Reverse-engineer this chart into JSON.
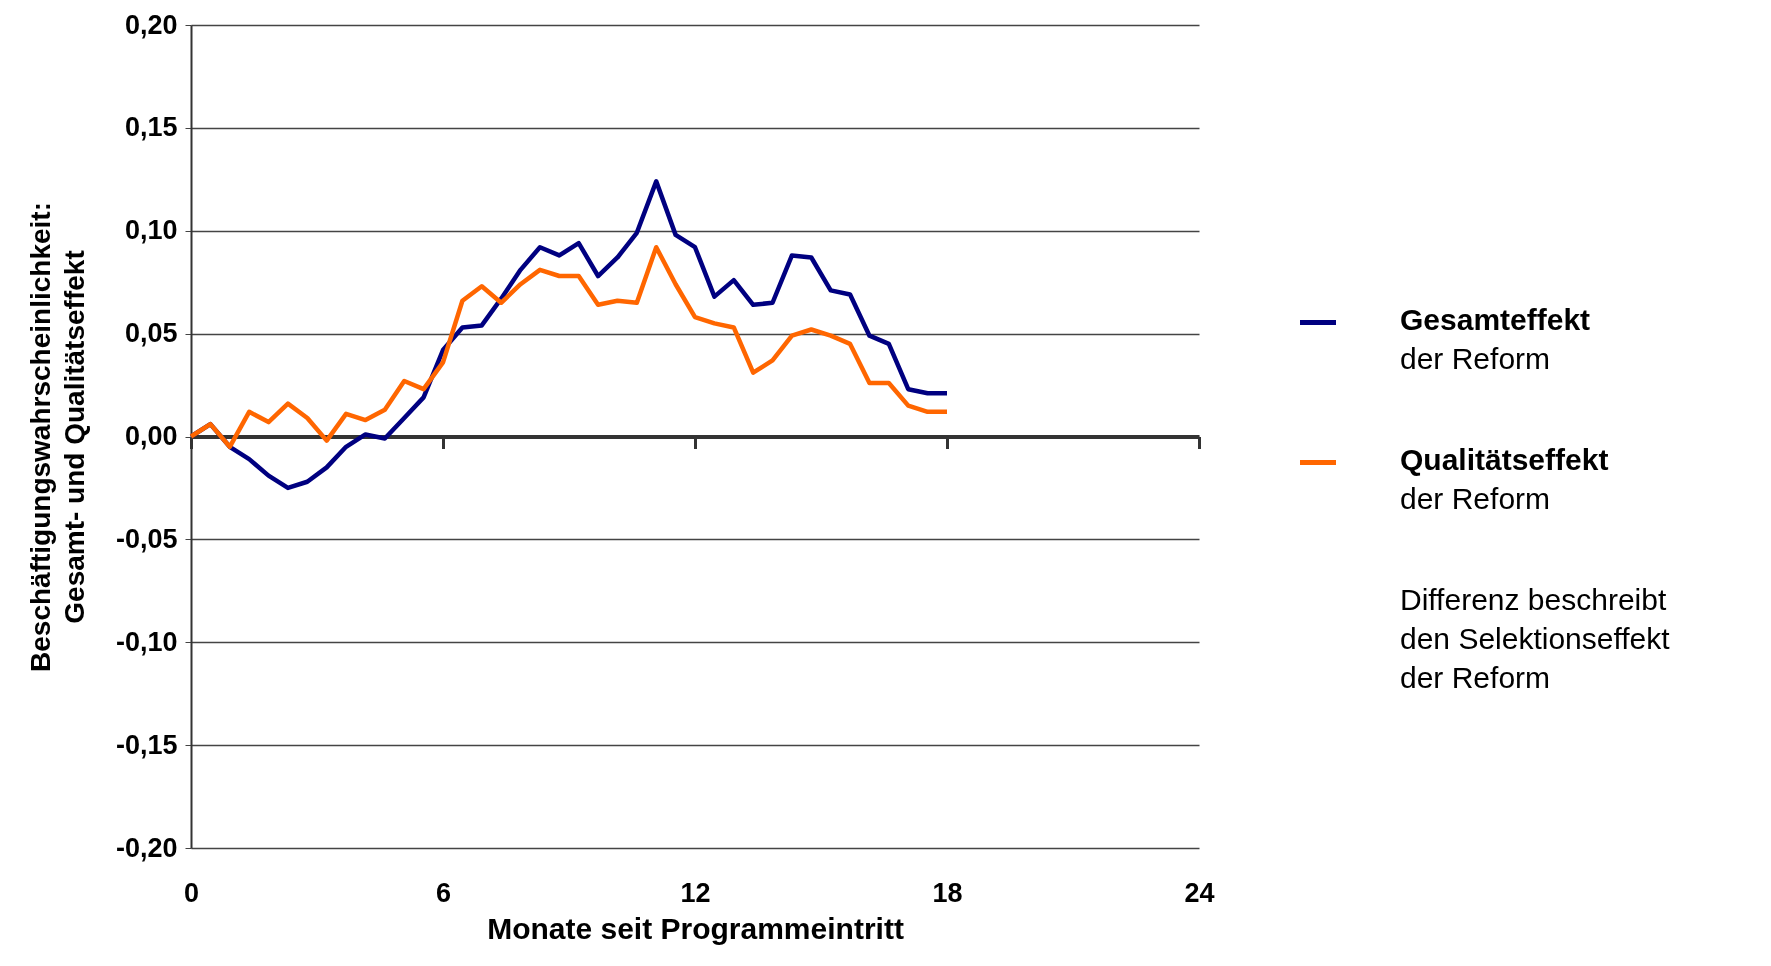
{
  "chart_data": {
    "type": "line",
    "xlabel": "Monate seit Programmeintritt",
    "ylabel": "Beschäftigungswahrscheinlichkeit:\nGesamt- und Qualitätseffekt",
    "x": [
      0,
      0.462,
      0.923,
      1.385,
      1.846,
      2.308,
      2.769,
      3.231,
      3.692,
      4.154,
      4.615,
      5.077,
      5.538,
      6,
      6.462,
      6.923,
      7.385,
      7.846,
      8.308,
      8.769,
      9.231,
      9.692,
      10.154,
      10.615,
      11.077,
      11.538,
      12,
      12.462,
      12.923,
      13.385,
      13.846,
      14.308,
      14.769,
      15.231,
      15.692,
      16.154,
      16.615,
      17.077,
      17.538,
      18
    ],
    "series": [
      {
        "name": "Gesamteffekt der Reform",
        "color": "#000080",
        "values": [
          0,
          0.006,
          -0.005,
          -0.011,
          -0.019,
          -0.025,
          -0.022,
          -0.015,
          -0.005,
          0.001,
          -0.001,
          0.009,
          0.019,
          0.042,
          0.053,
          0.054,
          0.067,
          0.081,
          0.092,
          0.088,
          0.094,
          0.078,
          0.087,
          0.099,
          0.124,
          0.098,
          0.092,
          0.068,
          0.076,
          0.064,
          0.065,
          0.088,
          0.087,
          0.071,
          0.069,
          0.049,
          0.045,
          0.023,
          0.021,
          0.021
        ]
      },
      {
        "name": "Qualitätseffekt der Reform",
        "color": "#ff6600",
        "values": [
          0,
          0.006,
          -0.005,
          0.012,
          0.007,
          0.016,
          0.009,
          -0.002,
          0.011,
          0.008,
          0.013,
          0.027,
          0.023,
          0.036,
          0.066,
          0.073,
          0.065,
          0.074,
          0.081,
          0.078,
          0.078,
          0.064,
          0.066,
          0.065,
          0.092,
          0.074,
          0.058,
          0.055,
          0.053,
          0.031,
          0.037,
          0.049,
          0.052,
          0.049,
          0.045,
          0.026,
          0.026,
          0.015,
          0.012,
          0.012
        ]
      }
    ],
    "xlim": [
      0,
      24
    ],
    "xticks": [
      0,
      6,
      12,
      18,
      24
    ],
    "ylim": [
      -0.2,
      0.2
    ],
    "yticks": [
      {
        "value": -0.2,
        "label": "-0,20"
      },
      {
        "value": -0.15,
        "label": "-0,15"
      },
      {
        "value": -0.1,
        "label": "-0,10"
      },
      {
        "value": -0.05,
        "label": "-0,05"
      },
      {
        "value": 0,
        "label": "0,00"
      },
      {
        "value": 0.05,
        "label": "0,05"
      },
      {
        "value": 0.1,
        "label": "0,10"
      },
      {
        "value": 0.15,
        "label": "0,15"
      },
      {
        "value": 0.2,
        "label": "0,20"
      }
    ],
    "grid": "y",
    "legend": "right",
    "marker": "none",
    "line_style": "solid",
    "annotations": [
      "Differenz beschreibt den Selektionseffekt der Reform"
    ]
  }
}
